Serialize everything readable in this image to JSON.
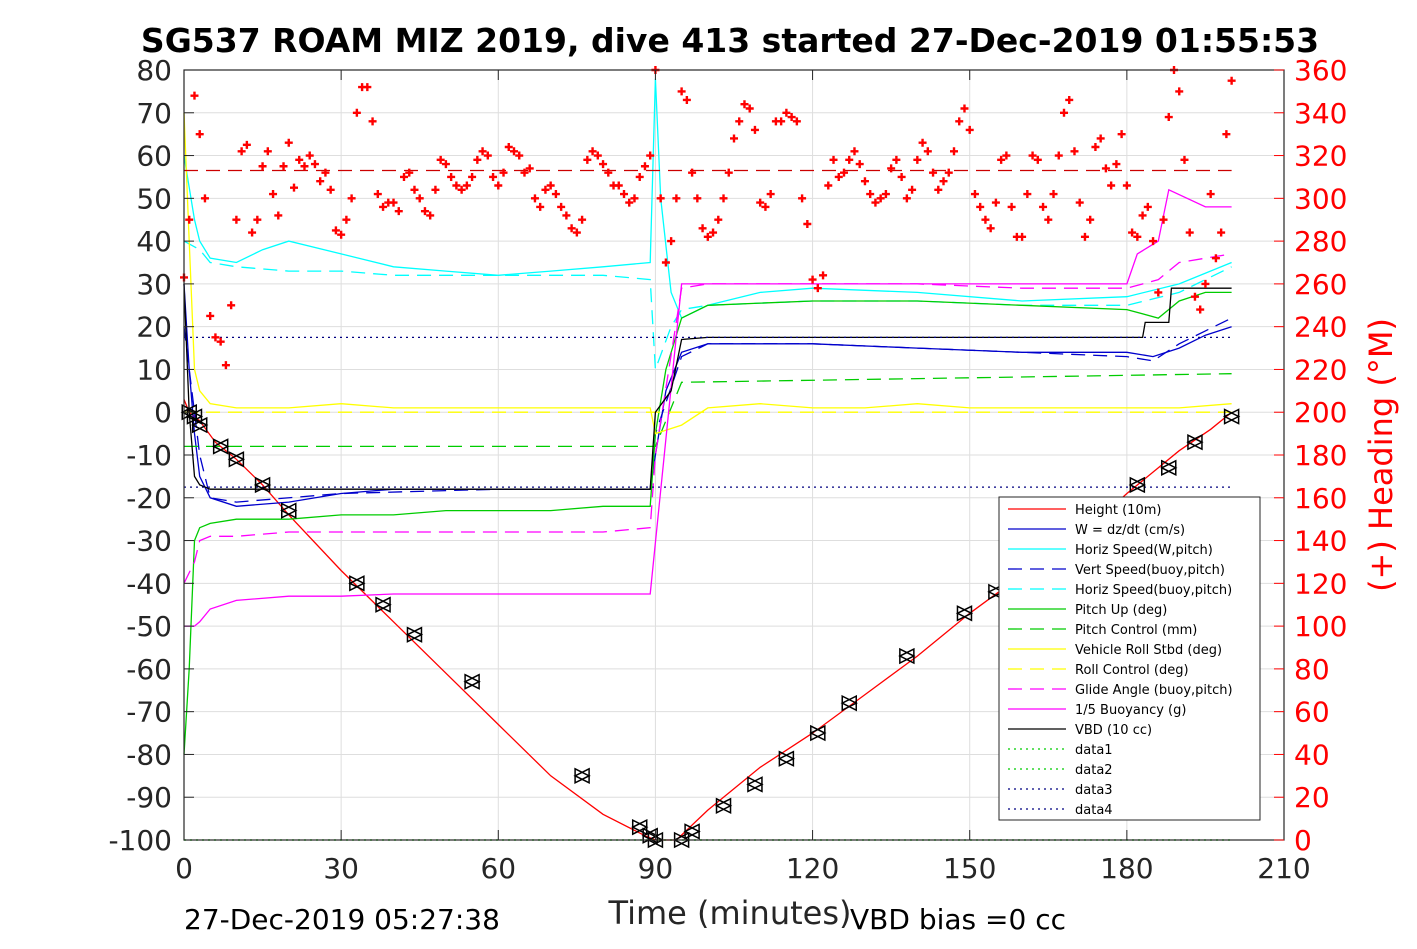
{
  "chart_data": {
    "type": "line",
    "title": "SG537 ROAM MIZ 2019, dive 413 started 27-Dec-2019 01:55:53",
    "xlabel": "Time (minutes)",
    "ylabel_right": "(+) Heading (°M)",
    "footer_left": "27-Dec-2019 05:27:38",
    "footer_right": "VBD bias =0 cc",
    "xlim": [
      0,
      210
    ],
    "ylim_left": [
      -100,
      80
    ],
    "ylim_right": [
      0,
      360
    ],
    "x_ticks": [
      0,
      30,
      60,
      90,
      120,
      150,
      180,
      210
    ],
    "y_ticks_left": [
      -100,
      -90,
      -80,
      -70,
      -60,
      -50,
      -40,
      -30,
      -20,
      -10,
      0,
      10,
      20,
      30,
      40,
      50,
      60,
      70,
      80
    ],
    "y_ticks_right": [
      0,
      20,
      40,
      60,
      80,
      100,
      120,
      140,
      160,
      180,
      200,
      220,
      240,
      260,
      280,
      300,
      320,
      340,
      360
    ],
    "grid": true,
    "legend_position": "bottom-right",
    "colors": {
      "red": "#ff0000",
      "blue": "#0000cc",
      "cyan": "#00ffff",
      "green": "#00cc00",
      "yellow": "#ffff00",
      "magenta": "#ff00ff",
      "black": "#000000",
      "navy": "#000080"
    },
    "series": [
      {
        "name": "Height (10m)",
        "color": "#ff0000",
        "style": "solid",
        "axis": "left",
        "x": [
          0,
          1,
          3,
          6,
          10,
          15,
          20,
          30,
          40,
          50,
          60,
          70,
          80,
          88,
          90,
          94,
          100,
          110,
          120,
          130,
          140,
          150,
          160,
          170,
          180,
          190,
          196,
          200
        ],
        "y": [
          3,
          0,
          -2,
          -7,
          -11,
          -17,
          -24,
          -37,
          -49,
          -61,
          -73,
          -85,
          -94,
          -99,
          -100,
          -100,
          -93,
          -83,
          -75,
          -66,
          -57,
          -47,
          -38,
          -30,
          -19,
          -9,
          -4,
          0
        ]
      },
      {
        "name": "W = dz/dt (cm/s)",
        "color": "#0000cc",
        "style": "solid",
        "axis": "left",
        "x": [
          0,
          1,
          2,
          3,
          5,
          10,
          20,
          30,
          40,
          60,
          80,
          89,
          90,
          92,
          95,
          100,
          120,
          140,
          160,
          180,
          185,
          190,
          195,
          200
        ],
        "y": [
          30,
          10,
          -5,
          -15,
          -20,
          -22,
          -21,
          -19,
          -18,
          -18,
          -18,
          -18,
          -10,
          5,
          14,
          16,
          16,
          15,
          14,
          14,
          13,
          15,
          18,
          20
        ]
      },
      {
        "name": "Horiz Speed(W,pitch)",
        "color": "#00ffff",
        "style": "solid",
        "axis": "left",
        "x": [
          0,
          2,
          3,
          5,
          10,
          15,
          20,
          30,
          40,
          50,
          60,
          70,
          80,
          89,
          90,
          91,
          93,
          95,
          100,
          110,
          120,
          140,
          160,
          180,
          190,
          200
        ],
        "y": [
          60,
          45,
          40,
          36,
          35,
          38,
          40,
          37,
          34,
          33,
          32,
          33,
          34,
          35,
          78,
          50,
          28,
          22,
          25,
          28,
          29,
          28,
          26,
          27,
          30,
          35
        ]
      },
      {
        "name": "Vert Speed(buoy,pitch)",
        "color": "#0000cc",
        "style": "dashed",
        "axis": "left",
        "x": [
          0,
          3,
          5,
          10,
          30,
          60,
          89,
          90,
          95,
          100,
          120,
          140,
          160,
          180,
          185,
          190,
          195,
          200
        ],
        "y": [
          20,
          -10,
          -20,
          -21,
          -19,
          -18,
          -18,
          -5,
          13,
          16,
          16,
          15,
          14,
          13,
          12,
          16,
          19,
          22
        ]
      },
      {
        "name": "Horiz Speed(buoy,pitch)",
        "color": "#00ffff",
        "style": "dashed",
        "axis": "left",
        "x": [
          0,
          3,
          5,
          10,
          20,
          30,
          40,
          50,
          60,
          70,
          80,
          89,
          90,
          93,
          95,
          100,
          120,
          140,
          160,
          180,
          190,
          200
        ],
        "y": [
          40,
          38,
          35,
          34,
          33,
          33,
          32,
          32,
          32,
          32,
          32,
          31,
          10,
          20,
          24,
          25,
          26,
          26,
          25,
          25,
          28,
          34
        ]
      },
      {
        "name": "Pitch Up (deg)",
        "color": "#00cc00",
        "style": "solid",
        "axis": "left",
        "x": [
          0,
          1,
          2,
          3,
          5,
          10,
          20,
          30,
          40,
          50,
          60,
          70,
          80,
          89,
          90,
          92,
          95,
          100,
          120,
          140,
          160,
          180,
          186,
          190,
          195,
          200
        ],
        "y": [
          -80,
          -60,
          -30,
          -27,
          -26,
          -25,
          -25,
          -24,
          -24,
          -23,
          -23,
          -23,
          -22,
          -22,
          -5,
          10,
          22,
          25,
          26,
          26,
          25,
          24,
          22,
          26,
          28,
          28
        ]
      },
      {
        "name": "Pitch Control (mm)",
        "color": "#00cc00",
        "style": "dashed",
        "axis": "left",
        "x": [
          0,
          3,
          89,
          90,
          95,
          200
        ],
        "y": [
          -8,
          -8,
          -8,
          -8,
          7,
          9
        ]
      },
      {
        "name": "Vehicle Roll Stbd (deg)",
        "color": "#ffff00",
        "style": "solid",
        "axis": "left",
        "x": [
          0,
          1,
          2,
          3,
          5,
          10,
          20,
          30,
          40,
          50,
          60,
          70,
          80,
          89,
          90,
          95,
          100,
          110,
          120,
          130,
          140,
          150,
          160,
          170,
          180,
          190,
          200
        ],
        "y": [
          70,
          40,
          10,
          5,
          2,
          1,
          1,
          2,
          1,
          1,
          1,
          1,
          1,
          1,
          -5,
          -3,
          1,
          2,
          1,
          1,
          2,
          1,
          1,
          1,
          1,
          1,
          2
        ]
      },
      {
        "name": "Roll Control (deg)",
        "color": "#ffff00",
        "style": "dashed",
        "axis": "left",
        "x": [
          0,
          3,
          89,
          90,
          200
        ],
        "y": [
          0,
          0,
          0,
          0,
          0
        ]
      },
      {
        "name": "Glide Angle (buoy,pitch)",
        "color": "#ff00ff",
        "style": "dashed",
        "axis": "left",
        "x": [
          0,
          2,
          3,
          5,
          10,
          20,
          30,
          40,
          50,
          60,
          70,
          80,
          89,
          90,
          95,
          100,
          120,
          140,
          160,
          180,
          186,
          190,
          195,
          200
        ],
        "y": [
          -40,
          -35,
          -30,
          -29,
          -29,
          -28,
          -28,
          -28,
          -28,
          -28,
          -28,
          -28,
          -27,
          -10,
          29,
          30,
          30,
          30,
          29,
          29,
          31,
          35,
          36,
          37
        ]
      },
      {
        "name": "1/5 Buoyancy (g)",
        "color": "#ff00ff",
        "style": "solid",
        "axis": "left",
        "x": [
          0,
          2,
          3,
          5,
          10,
          20,
          30,
          40,
          50,
          60,
          70,
          80,
          89,
          95,
          100,
          120,
          140,
          160,
          180,
          182,
          186,
          188,
          195,
          200
        ],
        "y": [
          -50,
          -50,
          -49,
          -46,
          -44,
          -43,
          -43,
          -42.5,
          -42.5,
          -42.5,
          -42.5,
          -42.5,
          -42.5,
          30,
          30,
          30,
          30,
          30,
          30,
          37,
          40,
          52,
          48,
          48
        ]
      },
      {
        "name": "VBD (10 cc)",
        "color": "#000000",
        "style": "solid",
        "axis": "left",
        "x": [
          0,
          1,
          2,
          3,
          5,
          10,
          89,
          90,
          93,
          95,
          100,
          180,
          183,
          183.5,
          188,
          188.5,
          200
        ],
        "y": [
          30,
          0,
          -15,
          -17,
          -18,
          -18,
          -18,
          0,
          5,
          17,
          17.5,
          17.5,
          17.5,
          21,
          21,
          29,
          29
        ]
      },
      {
        "name": "data1",
        "color": "#00cc00",
        "style": "dotted",
        "axis": "left",
        "x": [
          0,
          200
        ],
        "y": [
          -100,
          -100
        ]
      },
      {
        "name": "data2",
        "color": "#00cc00",
        "style": "dotted",
        "axis": "left",
        "x": [
          0,
          200
        ],
        "y": [
          -100,
          -100
        ]
      },
      {
        "name": "data3",
        "color": "#000080",
        "style": "dotted",
        "axis": "left",
        "x": [
          0,
          200
        ],
        "y": [
          17.5,
          17.5
        ]
      },
      {
        "name": "data4",
        "color": "#000080",
        "style": "dotted",
        "axis": "left",
        "x": [
          0,
          200
        ],
        "y": [
          -17.5,
          -17.5
        ]
      }
    ],
    "heading_target": {
      "color": "#cc0000",
      "style": "dashed",
      "axis": "right",
      "x": [
        0,
        200
      ],
      "y": [
        313,
        313
      ]
    },
    "heading_markers": {
      "marker": "+",
      "color": "#ff0000",
      "axis": "right",
      "x": [
        0,
        1,
        2,
        3,
        4,
        5,
        6,
        7,
        8,
        9,
        10,
        11,
        12,
        13,
        14,
        15,
        16,
        17,
        18,
        19,
        20,
        21,
        22,
        23,
        24,
        25,
        26,
        27,
        28,
        29,
        30,
        31,
        32,
        33,
        34,
        35,
        36,
        37,
        38,
        39,
        40,
        41,
        42,
        43,
        44,
        45,
        46,
        47,
        48,
        49,
        50,
        51,
        52,
        53,
        54,
        55,
        56,
        57,
        58,
        59,
        60,
        61,
        62,
        63,
        64,
        65,
        66,
        67,
        68,
        69,
        70,
        71,
        72,
        73,
        74,
        75,
        76,
        77,
        78,
        79,
        80,
        81,
        82,
        83,
        84,
        85,
        86,
        87,
        88,
        89,
        90,
        91,
        92,
        93,
        94,
        95,
        96,
        97,
        98,
        99,
        100,
        101,
        102,
        103,
        104,
        105,
        106,
        107,
        108,
        109,
        110,
        111,
        112,
        113,
        114,
        115,
        116,
        117,
        118,
        119,
        120,
        121,
        122,
        123,
        124,
        125,
        126,
        127,
        128,
        129,
        130,
        131,
        132,
        133,
        134,
        135,
        136,
        137,
        138,
        139,
        140,
        141,
        142,
        143,
        144,
        145,
        146,
        147,
        148,
        149,
        150,
        151,
        152,
        153,
        154,
        155,
        156,
        157,
        158,
        159,
        160,
        161,
        162,
        163,
        164,
        165,
        166,
        167,
        168,
        169,
        170,
        171,
        172,
        173,
        174,
        175,
        176,
        177,
        178,
        179,
        180,
        181,
        182,
        183,
        184,
        185,
        186,
        187,
        188,
        189,
        190,
        191,
        192,
        193,
        194,
        195,
        196,
        197,
        198,
        199,
        200
      ],
      "y": [
        263,
        290,
        348,
        330,
        300,
        245,
        235,
        233,
        222,
        250,
        290,
        322,
        325,
        284,
        290,
        315,
        322,
        302,
        292,
        315,
        326,
        305,
        318,
        315,
        320,
        316,
        308,
        312,
        304,
        285,
        283,
        290,
        300,
        340,
        352,
        352,
        336,
        302,
        296,
        298,
        298,
        294,
        310,
        312,
        304,
        300,
        294,
        292,
        304,
        318,
        316,
        310,
        306,
        304,
        306,
        310,
        318,
        322,
        320,
        310,
        306,
        312,
        324,
        322,
        320,
        312,
        314,
        300,
        296,
        304,
        306,
        302,
        296,
        292,
        286,
        284,
        290,
        318,
        322,
        320,
        316,
        312,
        306,
        306,
        302,
        298,
        300,
        310,
        315,
        320,
        360,
        300,
        270,
        280,
        300,
        350,
        346,
        312,
        300,
        286,
        282,
        284,
        290,
        300,
        312,
        328,
        336,
        344,
        342,
        332,
        298,
        296,
        302,
        336,
        336,
        340,
        338,
        336,
        300,
        288,
        262,
        258,
        264,
        306,
        318,
        310,
        312,
        318,
        322,
        316,
        308,
        302,
        298,
        300,
        302,
        314,
        318,
        310,
        300,
        304,
        318,
        326,
        322,
        312,
        304,
        308,
        312,
        322,
        336,
        342,
        332,
        302,
        296,
        290,
        286,
        298,
        318,
        320,
        296,
        282,
        282,
        302,
        320,
        318,
        296,
        290,
        302,
        320,
        340,
        346,
        322,
        298,
        282,
        290,
        324,
        328,
        314,
        306,
        316,
        330,
        306,
        284,
        282,
        292,
        296,
        280,
        256,
        290,
        338,
        360,
        350,
        318,
        284,
        254,
        248,
        260,
        302,
        272,
        284,
        330,
        355
      ]
    },
    "position_markers": {
      "color": "#000000",
      "axis": "left",
      "x": [
        1,
        2,
        3,
        7,
        10,
        15,
        20,
        33,
        38,
        44,
        55,
        76,
        87,
        89,
        90,
        95,
        97,
        103,
        109,
        115,
        121,
        127,
        138,
        149,
        155,
        182,
        188,
        193,
        200
      ],
      "y": [
        0,
        -1,
        -3,
        -8,
        -11,
        -17,
        -23,
        -40,
        -45,
        -52,
        -63,
        -85,
        -97,
        -99,
        -100,
        -100,
        -98,
        -92,
        -87,
        -81,
        -75,
        -68,
        -57,
        -47,
        -42,
        -17,
        -13,
        -7,
        -1
      ]
    }
  }
}
